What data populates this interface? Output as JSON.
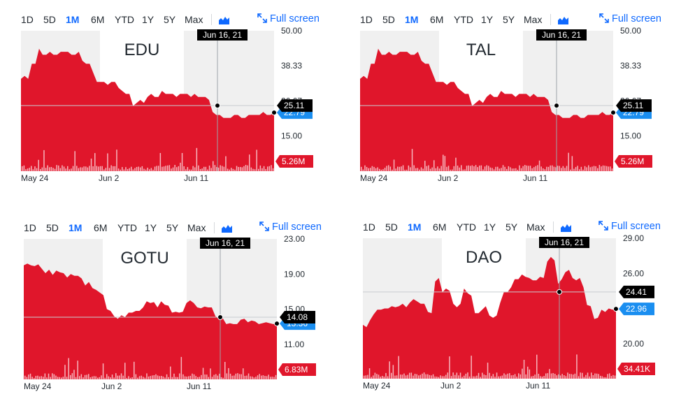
{
  "toolbar": {
    "ranges": [
      "1D",
      "5D",
      "1M",
      "6M",
      "YTD",
      "1Y",
      "5Y",
      "Max"
    ],
    "active_range": "1M",
    "chart_type_icon": "mountain-chart-icon",
    "fullscreen_icon": "expand-arrows-icon",
    "fullscreen_label": "Full screen"
  },
  "colors": {
    "area": "#e0162b",
    "shade": "#f0f0f0",
    "accent": "#0f69ff",
    "crosshair_label": "#000000",
    "current_label": "#1a8ef0"
  },
  "chart_data": [
    {
      "type": "area",
      "title": "EDU",
      "x_ticks": [
        "May 24",
        "Jun 2",
        "Jun 11"
      ],
      "y_ticks": [
        "50.00",
        "38.33",
        "26.67",
        "15.00"
      ],
      "ylim": [
        3.3,
        50
      ],
      "crosshair_label": "Jun 16, 21",
      "crosshair_value": "25.11",
      "current_value": "22.79",
      "volume_label": "5.26M",
      "series": [
        {
          "values": [
            34,
            35,
            34,
            39,
            39,
            44,
            42,
            42,
            43,
            42,
            42,
            43,
            43,
            43,
            42,
            42,
            43,
            40,
            39,
            39,
            36,
            33,
            33,
            33,
            32,
            33,
            33,
            31,
            30,
            29,
            29,
            25,
            26,
            27,
            26,
            28,
            29,
            28,
            28,
            30,
            29,
            29,
            29,
            28,
            29,
            29,
            29,
            28,
            29,
            28,
            28,
            28,
            27,
            23,
            22,
            22,
            21,
            21,
            21,
            22,
            22,
            21,
            21,
            22,
            22,
            22,
            22,
            23,
            22,
            22,
            22.79
          ]
        }
      ]
    },
    {
      "type": "area",
      "title": "TAL",
      "x_ticks": [
        "May 24",
        "Jun 2",
        "Jun 11"
      ],
      "y_ticks": [
        "50.00",
        "38.33",
        "26.67",
        "15.00"
      ],
      "ylim": [
        3.3,
        50
      ],
      "crosshair_label": "Jun 16, 21",
      "crosshair_value": "25.11",
      "current_value": "22.79",
      "volume_label": "5.26M",
      "series": [
        {
          "values": [
            34,
            35,
            34,
            39,
            39,
            44,
            42,
            42,
            43,
            42,
            42,
            43,
            43,
            43,
            42,
            42,
            43,
            40,
            39,
            39,
            36,
            33,
            33,
            33,
            32,
            33,
            33,
            31,
            30,
            29,
            29,
            25,
            26,
            27,
            26,
            28,
            29,
            28,
            28,
            30,
            29,
            29,
            29,
            28,
            29,
            29,
            29,
            28,
            29,
            28,
            28,
            28,
            27,
            23,
            22,
            22,
            21,
            21,
            21,
            22,
            22,
            21,
            21,
            22,
            22,
            22,
            22,
            23,
            22,
            22,
            22.79
          ]
        }
      ]
    },
    {
      "type": "area",
      "title": "GOTU",
      "x_ticks": [
        "May 24",
        "Jun 2",
        "Jun 11"
      ],
      "y_ticks": [
        "23.00",
        "19.00",
        "15.00",
        "11.00"
      ],
      "ylim": [
        7,
        23
      ],
      "crosshair_label": "Jun 16, 21",
      "crosshair_value": "14.08",
      "current_value": "13.36",
      "volume_label": "6.83M",
      "series": [
        {
          "values": [
            20,
            20.2,
            20,
            19.9,
            20.1,
            19.6,
            19.1,
            19.5,
            18.9,
            19.4,
            19.2,
            19.1,
            18.6,
            19,
            18.8,
            18.8,
            18.5,
            17.7,
            18.1,
            17.4,
            17.2,
            16.9,
            16.6,
            15,
            14.8,
            14.2,
            13.9,
            14.3,
            14.1,
            14.6,
            14.6,
            14.8,
            14.8,
            15.2,
            15.9,
            15.7,
            15.8,
            15.2,
            15.9,
            15.5,
            15.4,
            14.6,
            14.7,
            14.6,
            14.7,
            15.7,
            16,
            15.7,
            15.2,
            15.1,
            15.3,
            15.2,
            15.2,
            14.2,
            13.9,
            14,
            13.3,
            13.4,
            13.3,
            13.3,
            13.8,
            13.9,
            13.5,
            13.7,
            13.6,
            13.3,
            13.4,
            13.5,
            13.4,
            13.3,
            13.36
          ]
        }
      ]
    },
    {
      "type": "area",
      "title": "DAO",
      "x_ticks": [
        "May 24",
        "Jun 2",
        "Jun 11"
      ],
      "y_ticks": [
        "29.00",
        "26.00",
        "23.00",
        "20.00"
      ],
      "ylim": [
        17,
        29
      ],
      "crosshair_label": "Jun 16, 21",
      "crosshair_value": "24.41",
      "current_value": "22.96",
      "volume_label": "34.41K",
      "series": [
        {
          "values": [
            21.6,
            21.4,
            22,
            22.5,
            22.9,
            22.9,
            23,
            23,
            23.2,
            23.1,
            23.2,
            23.4,
            23.1,
            23.5,
            23.8,
            23.6,
            23.4,
            23.4,
            22.7,
            22.6,
            25.3,
            25.6,
            24.4,
            24.7,
            24.5,
            23.4,
            23.1,
            23.4,
            24.7,
            24.3,
            24.1,
            22.6,
            22.6,
            22.9,
            23.2,
            22.4,
            22.2,
            22.4,
            23.5,
            24.4,
            24.4,
            24.8,
            25.5,
            25.5,
            25.9,
            25.7,
            25.6,
            25.4,
            25.4,
            25.7,
            25.6,
            27,
            27.4,
            27.1,
            25.1,
            25.5,
            26.1,
            26.3,
            25.6,
            25.4,
            25.6,
            24.8,
            23.3,
            23.2,
            22.1,
            22.2,
            22.9,
            22.7,
            23,
            22.9,
            22.96
          ]
        }
      ]
    }
  ]
}
